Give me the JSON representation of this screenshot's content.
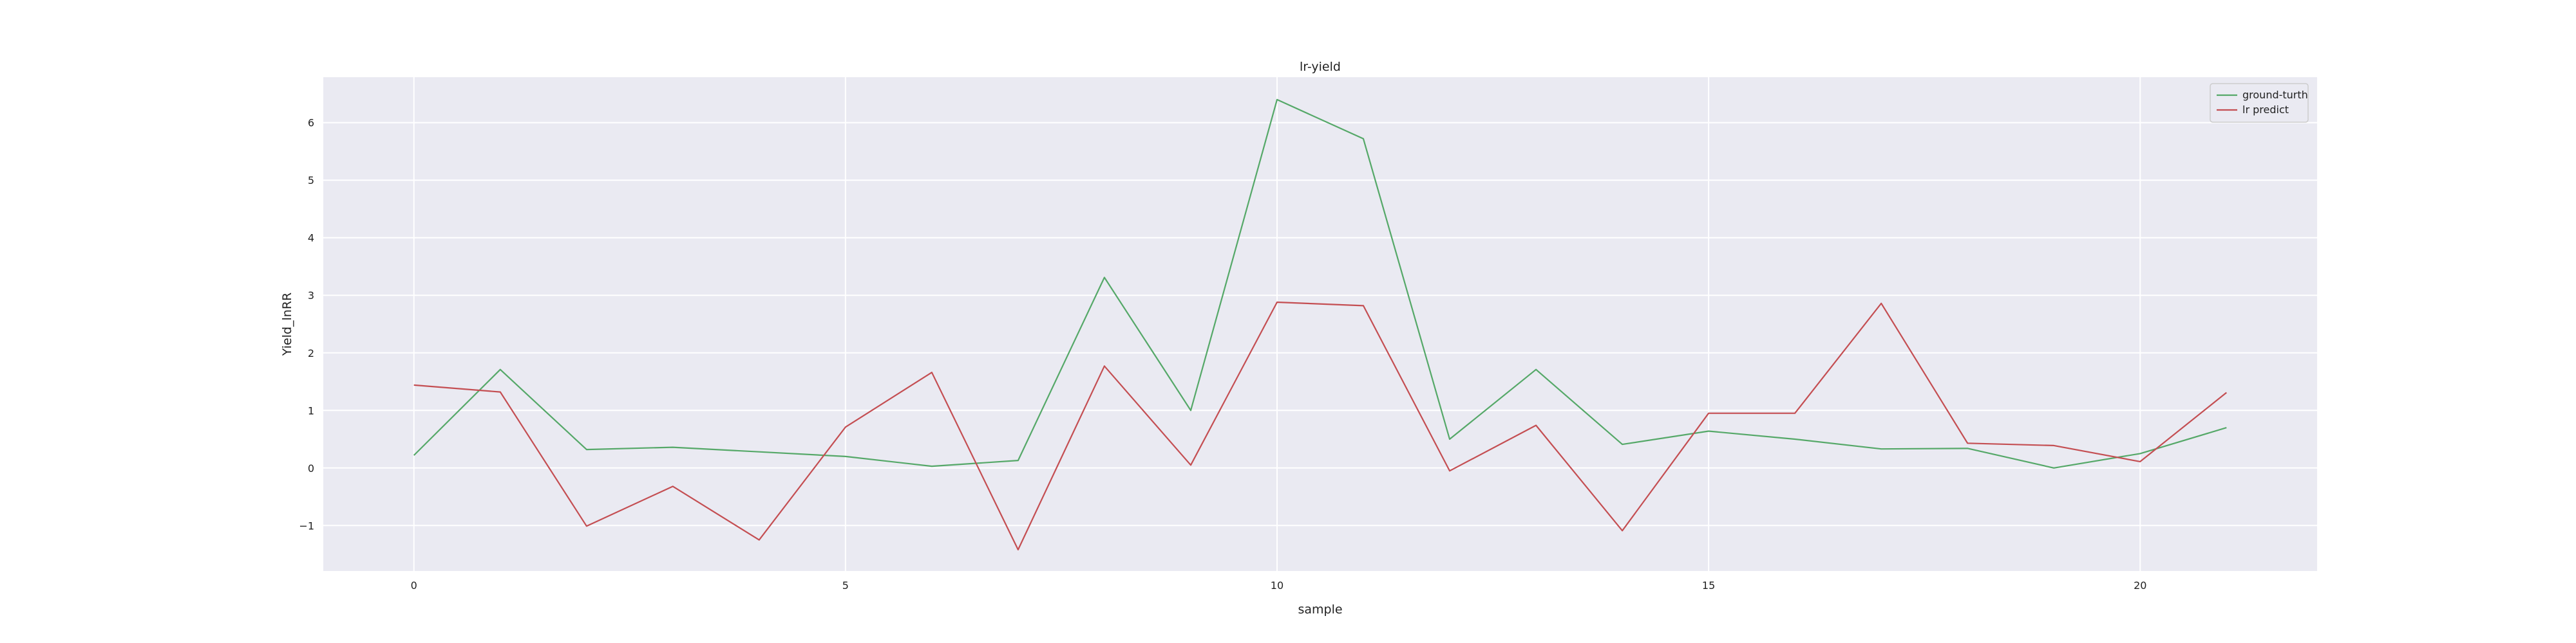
{
  "chart_data": {
    "type": "line",
    "title": "lr-yield",
    "xlabel": "sample",
    "ylabel": "Yield_lnRR",
    "xlim": [
      -1.05,
      22.05
    ],
    "ylim": [
      -1.79,
      6.79
    ],
    "x_ticks": [
      0,
      5,
      10,
      15,
      20
    ],
    "y_ticks": [
      -1,
      0,
      1,
      2,
      3,
      4,
      5,
      6
    ],
    "y_tick_labels": [
      "−1",
      "0",
      "1",
      "2",
      "3",
      "4",
      "5",
      "6"
    ],
    "grid": true,
    "legend_position": "top-right",
    "x": [
      0,
      1,
      2,
      3,
      4,
      5,
      6,
      7,
      8,
      9,
      10,
      11,
      12,
      13,
      14,
      15,
      16,
      17,
      18,
      19,
      20,
      21
    ],
    "series": [
      {
        "name": "ground-turth",
        "color": "#55a868",
        "values": [
          0.22,
          1.71,
          0.32,
          0.36,
          0.28,
          0.2,
          0.03,
          0.13,
          3.31,
          1.0,
          6.4,
          5.72,
          0.5,
          1.71,
          0.41,
          0.64,
          0.5,
          0.33,
          0.34,
          0.0,
          0.25,
          0.7
        ]
      },
      {
        "name": "lr predict",
        "color": "#c44e52",
        "values": [
          1.44,
          1.32,
          -1.01,
          -0.32,
          -1.25,
          0.71,
          1.66,
          -1.42,
          1.77,
          0.05,
          2.88,
          2.82,
          -0.05,
          0.74,
          -1.09,
          0.95,
          0.95,
          2.86,
          0.43,
          0.39,
          0.11,
          1.31
        ]
      }
    ]
  },
  "colors": {
    "plot_background": "#eaeaf2",
    "grid": "#ffffff",
    "text": "#222222"
  }
}
